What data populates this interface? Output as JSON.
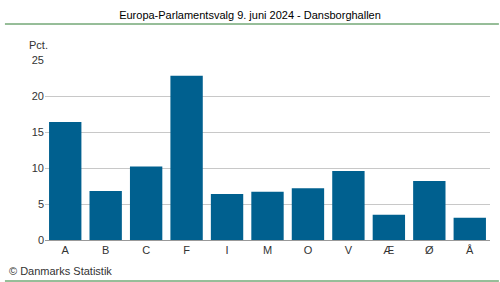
{
  "chart_data": {
    "type": "bar",
    "title": "Europa-Parlamentsvalg 9. juni 2024 - Dansborghallen",
    "y_label": "Pct.",
    "source": "© Danmarks Statistik",
    "categories": [
      "A",
      "B",
      "C",
      "F",
      "I",
      "M",
      "O",
      "V",
      "Æ",
      "Ø",
      "Å"
    ],
    "values": [
      16.4,
      6.8,
      10.2,
      22.8,
      6.4,
      6.7,
      7.2,
      9.6,
      3.5,
      8.2,
      3.1
    ],
    "color": "#00608f",
    "ylim": [
      0,
      25
    ],
    "yticks": [
      0,
      5,
      10,
      15,
      20,
      25
    ],
    "grid": true
  }
}
